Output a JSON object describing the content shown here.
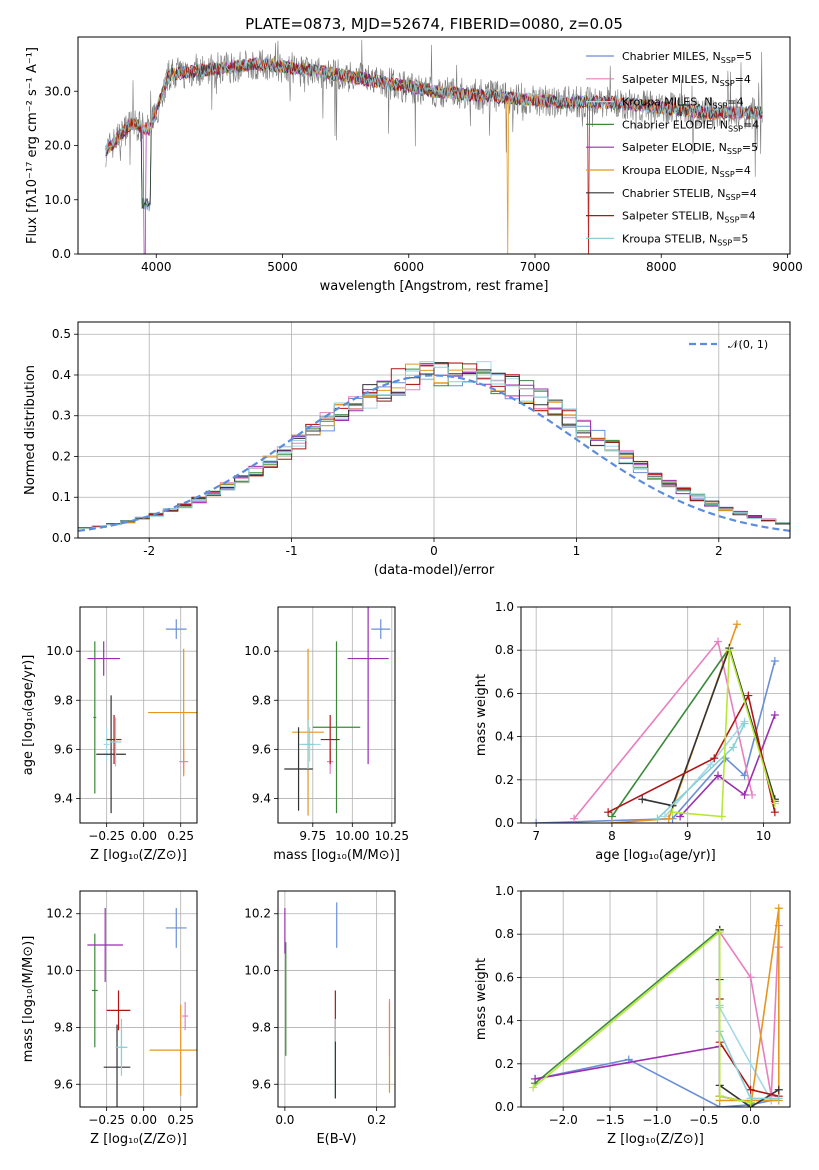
{
  "figure_title": "PLATE=0873, MJD=52674, FIBERID=0080, z=0.05",
  "colors": {
    "Chabrier MILES": "#6b8fd6",
    "Salpeter MILES": "#e87fbf",
    "Kroupa MILES": "#a4d8e8",
    "Chabrier ELODIE": "#3a8a3a",
    "Salpeter ELODIE": "#9a2fb0",
    "Kroupa ELODIE": "#e6961e",
    "Chabrier STELIB": "#333333",
    "Salpeter STELIB": "#b01515",
    "Kroupa STELIB": "#8ad0d6"
  },
  "chart_data": [
    {
      "id": "spectrum",
      "type": "line",
      "xlabel": "wavelength [Angstrom, rest frame]",
      "ylabel": "Flux [fλ10⁻¹⁷ erg cm⁻² s⁻¹ A⁻¹]",
      "xlim": [
        3380,
        9020
      ],
      "ylim": [
        0,
        40
      ],
      "xticks": [
        4000,
        5000,
        6000,
        7000,
        8000,
        9000
      ],
      "yticks": [
        0,
        10,
        20,
        30
      ],
      "grid": false,
      "legend_position": "top-right",
      "data_range": [
        3600,
        8800
      ],
      "continuum": [
        [
          3600,
          19
        ],
        [
          3800,
          24
        ],
        [
          3950,
          23
        ],
        [
          4100,
          33
        ],
        [
          4400,
          34
        ],
        [
          4800,
          35
        ],
        [
          5200,
          34
        ],
        [
          5700,
          32
        ],
        [
          6200,
          30
        ],
        [
          6700,
          29
        ],
        [
          7200,
          28
        ],
        [
          7600,
          28
        ],
        [
          8000,
          27
        ],
        [
          8400,
          26
        ],
        [
          8800,
          26
        ]
      ],
      "series": [
        {
          "name": "Chabrier MILES, N_SSP=5",
          "label_main": "Chabrier MILES, N",
          "label_sub": "SSP",
          "label_tail": "=5"
        },
        {
          "name": "Salpeter MILES, N_SSP=4",
          "label_main": "Salpeter MILES, N",
          "label_sub": "SSP",
          "label_tail": "=4"
        },
        {
          "name": "Kroupa MILES, N_SSP=4",
          "label_main": "Kroupa MILES, N",
          "label_sub": "SSP",
          "label_tail": "=4"
        },
        {
          "name": "Chabrier ELODIE, N_SSP=4",
          "label_main": "Chabrier ELODIE, N",
          "label_sub": "SSP",
          "label_tail": "=4"
        },
        {
          "name": "Salpeter ELODIE, N_SSP=5",
          "label_main": "Salpeter ELODIE, N",
          "label_sub": "SSP",
          "label_tail": "=5"
        },
        {
          "name": "Kroupa ELODIE, N_SSP=4",
          "label_main": "Kroupa ELODIE, N",
          "label_sub": "SSP",
          "label_tail": "=4"
        },
        {
          "name": "Chabrier STELIB, N_SSP=4",
          "label_main": "Chabrier STELIB, N",
          "label_sub": "SSP",
          "label_tail": "=4"
        },
        {
          "name": "Salpeter STELIB, N_SSP=4",
          "label_main": "Salpeter STELIB, N",
          "label_sub": "SSP",
          "label_tail": "=4"
        },
        {
          "name": "Kroupa STELIB, N_SSP=5",
          "label_main": "Kroupa STELIB, N",
          "label_sub": "SSP",
          "label_tail": "=5"
        }
      ]
    },
    {
      "id": "residuals",
      "type": "bar",
      "xlabel": "(data-model)/error",
      "ylabel": "Normed distribution",
      "xlim": [
        -2.5,
        2.5
      ],
      "ylim": [
        0,
        0.53
      ],
      "xticks": [
        -2,
        -1,
        0,
        1,
        2
      ],
      "yticks": [
        0.0,
        0.1,
        0.2,
        0.3,
        0.4,
        0.5
      ],
      "grid": true,
      "bin_width": 0.1,
      "legend": "𝒩(0, 1)",
      "legend_position": "top-right",
      "gaussian_mu": 0,
      "gaussian_sigma": 1
    },
    {
      "id": "age_vs_Z",
      "type": "scatter",
      "xlabel": "Z [log₁₀(Z/Z⊙)]",
      "ylabel": "age  [log₁₀(age/yr)]",
      "xlim": [
        -0.43,
        0.36
      ],
      "ylim": [
        9.3,
        10.18
      ],
      "xticks": [
        -0.25,
        0.0,
        0.25
      ],
      "xticklabels": [
        "−0.25",
        "0.00",
        "0.25"
      ],
      "yticks": [
        9.4,
        9.6,
        9.8,
        10.0
      ],
      "yticklabels": [
        "9.4",
        "9.6",
        "9.8",
        "10.0"
      ],
      "grid": true,
      "points": [
        {
          "series": "Chabrier MILES",
          "x": 0.22,
          "y": 10.09,
          "xerr": 0.07,
          "yerr": 0.04
        },
        {
          "series": "Salpeter MILES",
          "x": 0.27,
          "y": 9.55,
          "xerr": 0.03,
          "yerr": 0.05
        },
        {
          "series": "Kroupa MILES",
          "x": -0.25,
          "y": 9.62,
          "xerr": 0.02,
          "yerr": 0.07
        },
        {
          "series": "Chabrier ELODIE",
          "x": -0.33,
          "y": 9.73,
          "xerr": 0.01,
          "yerr": 0.31
        },
        {
          "series": "Salpeter ELODIE",
          "x": -0.27,
          "y": 9.97,
          "xerr": 0.11,
          "yerr": 0.07
        },
        {
          "series": "Kroupa ELODIE",
          "x": 0.27,
          "y": 9.75,
          "xerr": 0.24,
          "yerr": 0.26
        },
        {
          "series": "Chabrier STELIB",
          "x": -0.22,
          "y": 9.58,
          "xerr": 0.1,
          "yerr": 0.24
        },
        {
          "series": "Salpeter STELIB",
          "x": -0.2,
          "y": 9.64,
          "xerr": 0.05,
          "yerr": 0.1
        },
        {
          "series": "Kroupa STELIB",
          "x": -0.19,
          "y": 9.63,
          "xerr": 0.04,
          "yerr": 0.1
        }
      ]
    },
    {
      "id": "age_vs_mass",
      "type": "scatter",
      "xlabel": "mass [log₁₀(M/M⊙)]",
      "ylabel": "",
      "xlim": [
        9.53,
        10.27
      ],
      "ylim": [
        9.3,
        10.18
      ],
      "xticks": [
        9.75,
        10.0,
        10.25
      ],
      "xticklabels": [
        "9.75",
        "10.00",
        "10.25"
      ],
      "yticks": [
        9.4,
        9.6,
        9.8,
        10.0
      ],
      "yticklabels": [
        "9.4",
        "9.6",
        "9.8",
        "10.0"
      ],
      "grid": true,
      "points": [
        {
          "series": "Chabrier MILES",
          "x": 10.18,
          "y": 10.09,
          "xerr": 0.06,
          "yerr": 0.04
        },
        {
          "series": "Salpeter MILES",
          "x": 9.86,
          "y": 9.55,
          "xerr": 0.02,
          "yerr": 0.05
        },
        {
          "series": "Kroupa MILES",
          "x": 9.73,
          "y": 9.62,
          "xerr": 0.07,
          "yerr": 0.07
        },
        {
          "series": "Chabrier ELODIE",
          "x": 9.9,
          "y": 9.69,
          "xerr": 0.15,
          "yerr": 0.35
        },
        {
          "series": "Salpeter ELODIE",
          "x": 10.1,
          "y": 9.97,
          "xerr": 0.13,
          "yerr": 0.43
        },
        {
          "series": "Kroupa ELODIE",
          "x": 9.72,
          "y": 9.67,
          "xerr": 0.1,
          "yerr": 0.34
        },
        {
          "series": "Chabrier STELIB",
          "x": 9.66,
          "y": 9.52,
          "xerr": 0.09,
          "yerr": 0.17
        },
        {
          "series": "Salpeter STELIB",
          "x": 9.86,
          "y": 9.64,
          "xerr": 0.06,
          "yerr": 0.1
        },
        {
          "series": "Kroupa STELIB",
          "x": 9.72,
          "y": 9.62,
          "xerr": 0.04,
          "yerr": 0.1
        }
      ]
    },
    {
      "id": "weight_vs_age",
      "type": "line",
      "xlabel": "age  [log₁₀(age/yr)]",
      "ylabel": "mass weight",
      "xlim": [
        6.8,
        10.35
      ],
      "ylim": [
        0,
        1.0
      ],
      "xticks": [
        7,
        8,
        9,
        10
      ],
      "xticklabels": [
        "7",
        "8",
        "9",
        "10"
      ],
      "yticks": [
        0.0,
        0.2,
        0.4,
        0.6,
        0.8,
        1.0
      ],
      "yticklabels": [
        "0.0",
        "0.2",
        "0.4",
        "0.6",
        "0.8",
        "1.0"
      ],
      "grid": true,
      "series": [
        {
          "series": "Chabrier MILES",
          "x": [
            7.0,
            8.8,
            9.5,
            9.75,
            10.15
          ],
          "y": [
            0.0,
            0.02,
            0.3,
            0.22,
            0.75
          ]
        },
        {
          "series": "Salpeter MILES",
          "x": [
            7.5,
            9.4,
            9.85
          ],
          "y": [
            0.02,
            0.84,
            0.13
          ]
        },
        {
          "series": "Kroupa MILES",
          "x": [
            8.7,
            9.3,
            9.75
          ],
          "y": [
            0.03,
            0.27,
            0.47
          ]
        },
        {
          "series": "Chabrier ELODIE",
          "x": [
            8.0,
            9.55,
            10.15
          ],
          "y": [
            0.03,
            0.81,
            0.1
          ]
        },
        {
          "series": "Salpeter ELODIE",
          "x": [
            8.9,
            9.4,
            9.75,
            10.15
          ],
          "y": [
            0.03,
            0.22,
            0.13,
            0.5
          ]
        },
        {
          "series": "Kroupa ELODIE",
          "x": [
            8.0,
            8.75,
            9.65
          ],
          "y": [
            0.0,
            0.02,
            0.92
          ]
        },
        {
          "series": "Chabrier STELIB",
          "x": [
            8.4,
            8.8,
            9.55,
            10.15
          ],
          "y": [
            0.11,
            0.08,
            0.81,
            0.11
          ]
        },
        {
          "series": "Salpeter STELIB",
          "x": [
            7.95,
            9.35,
            9.8,
            10.15
          ],
          "y": [
            0.05,
            0.3,
            0.59,
            0.05
          ]
        },
        {
          "series": "Kroupa STELIB",
          "x": [
            8.6,
            9.6,
            9.75
          ],
          "y": [
            0.02,
            0.35,
            0.46
          ]
        },
        {
          "series": "lime",
          "x": [
            8.8,
            9.45,
            9.55,
            10.15
          ],
          "y": [
            0.05,
            0.03,
            0.8,
            0.09
          ]
        }
      ]
    },
    {
      "id": "mass_vs_Z",
      "type": "scatter",
      "xlabel": "Z [log₁₀(Z/Z⊙)]",
      "ylabel": "mass [log₁₀(M/M⊙)]",
      "xlim": [
        -0.43,
        0.36
      ],
      "ylim": [
        9.52,
        10.28
      ],
      "xticks": [
        -0.25,
        0.0,
        0.25
      ],
      "xticklabels": [
        "−0.25",
        "0.00",
        "0.25"
      ],
      "yticks": [
        9.6,
        9.8,
        10.0,
        10.2
      ],
      "yticklabels": [
        "9.6",
        "9.8",
        "10.0",
        "10.2"
      ],
      "grid": true,
      "points": [
        {
          "series": "Chabrier MILES",
          "x": 0.22,
          "y": 10.15,
          "xerr": 0.07,
          "yerr": 0.07
        },
        {
          "series": "Salpeter MILES",
          "x": 0.28,
          "y": 9.84,
          "xerr": 0.02,
          "yerr": 0.05
        },
        {
          "series": "Kroupa MILES",
          "x": -0.15,
          "y": 9.73,
          "xerr": 0.04,
          "yerr": 0.06
        },
        {
          "series": "Chabrier ELODIE",
          "x": -0.33,
          "y": 9.93,
          "xerr": 0.02,
          "yerr": 0.2
        },
        {
          "series": "Salpeter ELODIE",
          "x": -0.26,
          "y": 10.09,
          "xerr": 0.12,
          "yerr": 0.13
        },
        {
          "series": "Kroupa ELODIE",
          "x": 0.25,
          "y": 9.72,
          "xerr": 0.21,
          "yerr": 0.16
        },
        {
          "series": "Chabrier STELIB",
          "x": -0.18,
          "y": 9.66,
          "xerr": 0.09,
          "yerr": 0.15
        },
        {
          "series": "Salpeter STELIB",
          "x": -0.17,
          "y": 9.86,
          "xerr": 0.08,
          "yerr": 0.07
        },
        {
          "series": "Kroupa STELIB",
          "x": -0.15,
          "y": 9.73,
          "xerr": 0.04,
          "yerr": 0.1
        }
      ]
    },
    {
      "id": "mass_vs_EBV",
      "type": "scatter",
      "xlabel": "E(B-V)",
      "ylabel": "",
      "xlim": [
        -0.015,
        0.24
      ],
      "ylim": [
        9.52,
        10.28
      ],
      "xticks": [
        0.0,
        0.2
      ],
      "xticklabels": [
        "0.0",
        "0.2"
      ],
      "yticks": [
        9.6,
        9.8,
        10.0,
        10.2
      ],
      "yticklabels": [
        "9.6",
        "9.8",
        "10.0",
        "10.2"
      ],
      "grid": true,
      "points": [
        {
          "series": "Chabrier MILES",
          "x": 0.113,
          "y": 10.16,
          "xerr": 0,
          "yerr": 0.08
        },
        {
          "series": "Salpeter MILES",
          "x": 0.228,
          "y": 9.8,
          "xerr": 0,
          "yerr": 0.1
        },
        {
          "series": "Salpeter ELODIE",
          "x": 0.0,
          "y": 10.14,
          "xerr": 0,
          "yerr": 0.08
        },
        {
          "series": "Kroupa ELODIE",
          "x": 0.228,
          "y": 9.73,
          "xerr": 0,
          "yerr": 0.16
        },
        {
          "series": "Chabrier ELODIE",
          "x": 0.002,
          "y": 9.9,
          "xerr": 0,
          "yerr": 0.2
        },
        {
          "series": "Salpeter STELIB",
          "x": 0.11,
          "y": 9.84,
          "xerr": 0,
          "yerr": 0.09
        },
        {
          "series": "Kroupa STELIB",
          "x": 0.11,
          "y": 9.69,
          "xerr": 0,
          "yerr": 0.14
        },
        {
          "series": "Chabrier STELIB",
          "x": 0.11,
          "y": 9.65,
          "xerr": 0,
          "yerr": 0.1
        }
      ]
    },
    {
      "id": "weight_vs_Z",
      "type": "line",
      "xlabel": "Z [log₁₀(Z/Z⊙)]",
      "ylabel": "mass weight",
      "xlim": [
        -2.45,
        0.42
      ],
      "ylim": [
        0,
        1.0
      ],
      "xticks": [
        -2.0,
        -1.5,
        -1.0,
        -0.5,
        0.0
      ],
      "xticklabels": [
        "−2.0",
        "−1.5",
        "−1.0",
        "−0.5",
        "0.0"
      ],
      "yticks": [
        0.0,
        0.2,
        0.4,
        0.6,
        0.8,
        1.0
      ],
      "yticklabels": [
        "0.0",
        "0.2",
        "0.4",
        "0.6",
        "0.8",
        "1.0"
      ],
      "grid": true,
      "series": [
        {
          "series": "Chabrier MILES",
          "x": [
            -2.3,
            -1.3,
            -0.33,
            0.0,
            0.22
          ],
          "y": [
            0.13,
            0.22,
            0.0,
            0.01,
            0.03
          ]
        },
        {
          "series": "Salpeter MILES",
          "x": [
            -0.33,
            0.0,
            0.22,
            0.3,
            0.3
          ],
          "y": [
            0.81,
            0.6,
            0.05,
            0.84,
            0.74
          ]
        },
        {
          "series": "Kroupa MILES",
          "x": [
            -0.33,
            0.0,
            0.22
          ],
          "y": [
            0.46,
            0.2,
            0.03
          ]
        },
        {
          "series": "Chabrier ELODIE",
          "x": [
            -2.3,
            -0.33,
            -0.33,
            0.0
          ],
          "y": [
            0.11,
            0.82,
            0.05,
            0.02
          ]
        },
        {
          "series": "Salpeter ELODIE",
          "x": [
            -2.3,
            -0.33,
            -0.33,
            0.0
          ],
          "y": [
            0.13,
            0.28,
            0.05,
            0.02
          ]
        },
        {
          "series": "Kroupa ELODIE",
          "x": [
            -0.33,
            0.3,
            0.3,
            0.0
          ],
          "y": [
            0.03,
            0.03,
            0.92,
            0.0
          ]
        },
        {
          "series": "Chabrier STELIB",
          "x": [
            -0.33,
            -0.33,
            0.0,
            0.3
          ],
          "y": [
            0.82,
            0.1,
            0.0,
            0.08
          ]
        },
        {
          "series": "Salpeter STELIB",
          "x": [
            -0.33,
            -0.33,
            -0.33,
            0.0,
            0.3
          ],
          "y": [
            0.59,
            0.5,
            0.3,
            0.08,
            0.05
          ]
        },
        {
          "series": "Kroupa STELIB",
          "x": [
            -0.33,
            -0.33,
            0.0,
            0.3
          ],
          "y": [
            0.47,
            0.35,
            0.04,
            0.04
          ]
        },
        {
          "series": "lime",
          "x": [
            -2.32,
            -0.33,
            -0.33,
            0.0
          ],
          "y": [
            0.09,
            0.81,
            0.05,
            0.02
          ]
        }
      ]
    }
  ]
}
